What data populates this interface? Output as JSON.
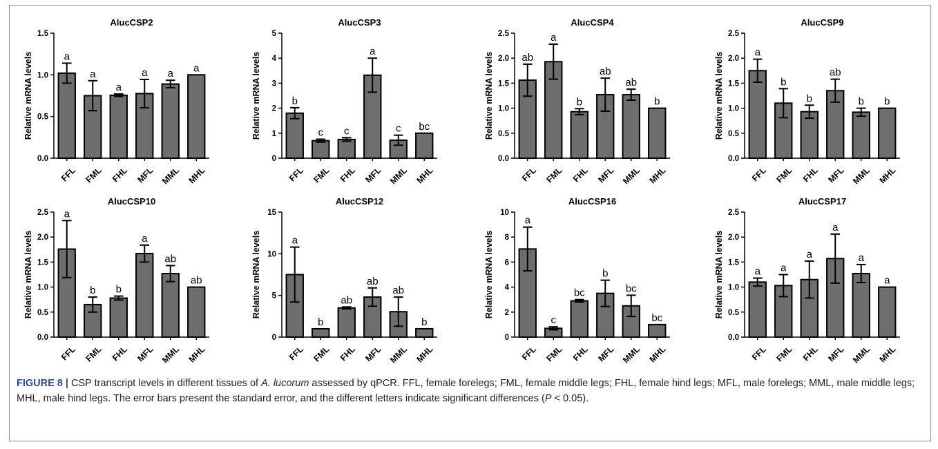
{
  "figure": {
    "label": "FIGURE 8 |",
    "caption_pre": " CSP transcript levels in different tissues of ",
    "caption_species": "A. lucorum",
    "caption_post": " assessed by qPCR. FFL, female forelegs; FML, female middle legs; FHL, female hind legs; MFL, male forelegs; MML, male middle legs; MHL, male hind legs. The error bars present the standard error, and the different letters indicate significant differences (",
    "caption_p": "P",
    "caption_end": " < 0.05)."
  },
  "colors": {
    "bar": "#6e6e6e",
    "bar_stroke": "#000000",
    "text": "#000000",
    "caption_label": "#2f4a86"
  },
  "chart_data": [
    {
      "type": "bar",
      "title": "AlucCSP2",
      "ylabel": "Relative mRNA levels",
      "categories": [
        "FFL",
        "FML",
        "FHL",
        "MFL",
        "MML",
        "MHL"
      ],
      "values": [
        1.02,
        0.75,
        0.755,
        0.775,
        0.89,
        1.0
      ],
      "errors": [
        0.12,
        0.18,
        0.015,
        0.17,
        0.045,
        0.0
      ],
      "letters": [
        "a",
        "a",
        "a",
        "a",
        "a",
        "a"
      ],
      "ylim": [
        0,
        1.5
      ],
      "yticks": [
        "0.0",
        "0.5",
        "1.0",
        "1.5"
      ]
    },
    {
      "type": "bar",
      "title": "AlucCSP3",
      "ylabel": "Relative mRNA levels",
      "categories": [
        "FFL",
        "FML",
        "FHL",
        "MFL",
        "MML",
        "MHL"
      ],
      "values": [
        1.8,
        0.7,
        0.75,
        3.32,
        0.72,
        1.0
      ],
      "errors": [
        0.22,
        0.06,
        0.07,
        0.68,
        0.2,
        0.0
      ],
      "letters": [
        "b",
        "c",
        "c",
        "a",
        "c",
        "bc"
      ],
      "ylim": [
        0,
        5
      ],
      "yticks": [
        "0",
        "1",
        "2",
        "3",
        "4",
        "5"
      ]
    },
    {
      "type": "bar",
      "title": "AlucCSP4",
      "ylabel": "Relative mRNA levels",
      "categories": [
        "FFL",
        "FML",
        "FHL",
        "MFL",
        "MML",
        "MHL"
      ],
      "values": [
        1.56,
        1.93,
        0.93,
        1.27,
        1.27,
        1.0
      ],
      "errors": [
        0.32,
        0.35,
        0.06,
        0.33,
        0.11,
        0.0
      ],
      "letters": [
        "ab",
        "a",
        "b",
        "ab",
        "ab",
        "b"
      ],
      "ylim": [
        0,
        2.5
      ],
      "yticks": [
        "0.0",
        "0.5",
        "1.0",
        "1.5",
        "2.0",
        "2.5"
      ]
    },
    {
      "type": "bar",
      "title": "AlucCSP9",
      "ylabel": "Relative mRNA levels",
      "categories": [
        "FFL",
        "FML",
        "FHL",
        "MFL",
        "MML",
        "MHL"
      ],
      "values": [
        1.75,
        1.1,
        0.93,
        1.35,
        0.92,
        1.0
      ],
      "errors": [
        0.23,
        0.29,
        0.13,
        0.23,
        0.08,
        0.0
      ],
      "letters": [
        "a",
        "b",
        "b",
        "ab",
        "b",
        "b"
      ],
      "ylim": [
        0,
        2.5
      ],
      "yticks": [
        "0.0",
        "0.5",
        "1.0",
        "1.5",
        "2.0",
        "2.5"
      ]
    },
    {
      "type": "bar",
      "title": "AlucCSP10",
      "ylabel": "Relative mRNA levels",
      "categories": [
        "FFL",
        "FML",
        "FHL",
        "MFL",
        "MML",
        "MHL"
      ],
      "values": [
        1.76,
        0.65,
        0.78,
        1.67,
        1.27,
        1.0
      ],
      "errors": [
        0.57,
        0.15,
        0.04,
        0.17,
        0.16,
        0.0
      ],
      "letters": [
        "a",
        "b",
        "b",
        "a",
        "ab",
        "ab"
      ],
      "ylim": [
        0,
        2.5
      ],
      "yticks": [
        "0.0",
        "0.5",
        "1.0",
        "1.5",
        "2.0",
        "2.5"
      ]
    },
    {
      "type": "bar",
      "title": "AlucCSP12",
      "ylabel": "Relative mRNA levels",
      "categories": [
        "FFL",
        "FML",
        "FHL",
        "MFL",
        "MML",
        "MHL"
      ],
      "values": [
        7.5,
        1.0,
        3.5,
        4.8,
        3.05,
        1.0
      ],
      "errors": [
        3.3,
        0.0,
        0.12,
        1.1,
        1.75,
        0.0
      ],
      "letters": [
        "a",
        "b",
        "ab",
        "ab",
        "ab",
        "b"
      ],
      "ylim": [
        0,
        15
      ],
      "yticks": [
        "0",
        "5",
        "10",
        "15"
      ]
    },
    {
      "type": "bar",
      "title": "AlucCSP16",
      "ylabel": "Relative mRNA levels",
      "categories": [
        "FFL",
        "FML",
        "FHL",
        "MFL",
        "MML",
        "MHL"
      ],
      "values": [
        7.05,
        0.7,
        2.9,
        3.5,
        2.5,
        1.0
      ],
      "errors": [
        1.75,
        0.12,
        0.1,
        1.05,
        0.85,
        0.0
      ],
      "letters": [
        "a",
        "c",
        "bc",
        "b",
        "bc",
        "bc"
      ],
      "ylim": [
        0,
        10
      ],
      "yticks": [
        "0",
        "2",
        "4",
        "6",
        "8",
        "10"
      ]
    },
    {
      "type": "bar",
      "title": "AlucCSP17",
      "ylabel": "Relative mRNA levels",
      "categories": [
        "FFL",
        "FML",
        "FHL",
        "MFL",
        "MML",
        "MHL"
      ],
      "values": [
        1.1,
        1.03,
        1.15,
        1.57,
        1.27,
        1.0
      ],
      "errors": [
        0.08,
        0.22,
        0.37,
        0.49,
        0.18,
        0.0
      ],
      "letters": [
        "a",
        "a",
        "a",
        "a",
        "a",
        "a"
      ],
      "ylim": [
        0,
        2.5
      ],
      "yticks": [
        "0.0",
        "0.5",
        "1.0",
        "1.5",
        "2.0",
        "2.5"
      ]
    }
  ]
}
